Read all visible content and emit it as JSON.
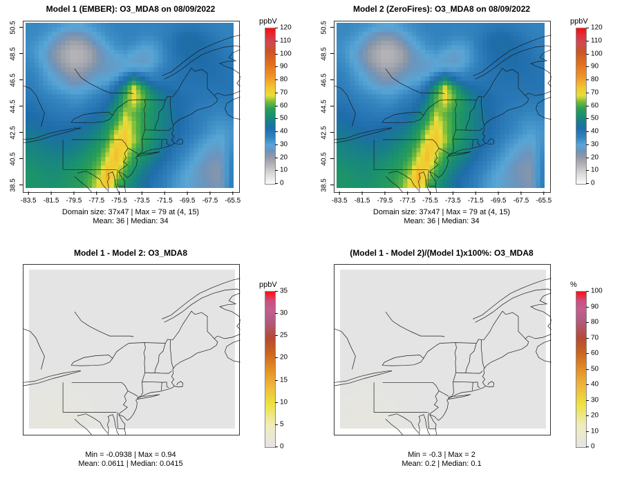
{
  "page": {
    "background": "#ffffff"
  },
  "panels": [
    {
      "title": "Model 1 (EMBER): O3_MDA8 on 08/09/2022",
      "stats_line1": "Domain size: 37x47 | Max = 79 at (4, 15)",
      "stats_line2": "Mean: 36 |  Median: 34",
      "colorbar": {
        "label": "ppbV",
        "min": 0,
        "max": 120,
        "ticks": [
          0,
          10,
          20,
          30,
          40,
          50,
          60,
          70,
          80,
          90,
          100,
          110,
          120
        ],
        "palette": "ozone"
      },
      "x_ticks": [
        -83.5,
        -81.5,
        -79.5,
        -77.5,
        -75.5,
        -73.5,
        -71.5,
        -69.5,
        -67.5,
        -65.5
      ],
      "y_ticks": [
        38.5,
        40.5,
        42.5,
        44.5,
        46.5,
        48.5,
        50.5
      ],
      "grid_ref": "ozone"
    },
    {
      "title": "Model 2 (ZeroFires): O3_MDA8 on 08/09/2022",
      "stats_line1": "Domain size: 37x47 | Max = 79 at (4, 15)",
      "stats_line2": "Mean: 36 |  Median: 34",
      "colorbar": {
        "label": "ppbV",
        "min": 0,
        "max": 120,
        "ticks": [
          0,
          10,
          20,
          30,
          40,
          50,
          60,
          70,
          80,
          90,
          100,
          110,
          120
        ],
        "palette": "ozone"
      },
      "x_ticks": [
        -83.5,
        -81.5,
        -79.5,
        -77.5,
        -75.5,
        -73.5,
        -71.5,
        -69.5,
        -67.5,
        -65.5
      ],
      "y_ticks": [
        38.5,
        40.5,
        42.5,
        44.5,
        46.5,
        48.5,
        50.5
      ],
      "grid_ref": "ozone"
    },
    {
      "title": "Model 1 - Model 2: O3_MDA8",
      "stats_line1": "Min = -0.0938 | Max = 0.94",
      "stats_line2": "Mean: 0.0611 |  Median: 0.0415",
      "colorbar": {
        "label": "ppbV",
        "min": 0,
        "max": 35,
        "ticks": [
          0,
          5,
          10,
          15,
          20,
          25,
          30,
          35
        ],
        "palette": "diff"
      },
      "x_ticks": [],
      "y_ticks": [],
      "grid_ref": "diff"
    },
    {
      "title": "(Model 1 - Model 2)/(Model 1)x100%: O3_MDA8",
      "stats_line1": "Min = -0.3 | Max = 2",
      "stats_line2": "Mean: 0.2 |  Median: 0.1",
      "colorbar": {
        "label": "%",
        "min": 0,
        "max": 100,
        "ticks": [
          0,
          10,
          20,
          30,
          40,
          50,
          60,
          70,
          80,
          90,
          100
        ],
        "palette": "diff"
      },
      "x_ticks": [],
      "y_ticks": [],
      "grid_ref": "pct"
    }
  ],
  "chart_data": {
    "type": "heatmap",
    "description": "2x2 panel ozone model comparison maps over the northeastern US / southeastern Canada",
    "lon_range": [
      -84,
      -65
    ],
    "lat_range": [
      38,
      51
    ],
    "domain_size": "37x47",
    "maps": [
      {
        "title": "Model 1 (EMBER): O3_MDA8 on 08/09/2022",
        "units": "ppbV",
        "zlim": [
          0,
          120
        ],
        "grid_ref": "ozone",
        "stats": {
          "max": 79,
          "max_at": "(4, 15)",
          "mean": 36,
          "median": 34
        }
      },
      {
        "title": "Model 2 (ZeroFires): O3_MDA8 on 08/09/2022",
        "units": "ppbV",
        "zlim": [
          0,
          120
        ],
        "grid_ref": "ozone",
        "stats": {
          "max": 79,
          "max_at": "(4, 15)",
          "mean": 36,
          "median": 34
        }
      },
      {
        "title": "Model 1 - Model 2: O3_MDA8",
        "units": "ppbV",
        "zlim": [
          0,
          35
        ],
        "grid_ref": "diff",
        "stats": {
          "min": -0.0938,
          "max": 0.94,
          "mean": 0.0611,
          "median": 0.0415
        }
      },
      {
        "title": "(Model 1 - Model 2)/(Model 1)x100%: O3_MDA8",
        "units": "%",
        "zlim": [
          0,
          100
        ],
        "grid_ref": "pct",
        "stats": {
          "min": -0.3,
          "max": 2,
          "mean": 0.2,
          "median": 0.1
        }
      }
    ],
    "grids": {
      "ozone": [
        [
          35,
          35,
          34,
          33,
          31,
          30,
          30,
          32,
          34,
          35,
          36,
          36,
          36,
          36,
          36,
          36,
          37,
          38,
          39,
          39,
          38,
          37,
          36,
          36
        ],
        [
          35,
          34,
          32,
          28,
          25,
          23,
          24,
          27,
          31,
          34,
          35,
          36,
          36,
          35,
          35,
          36,
          38,
          41,
          43,
          43,
          41,
          39,
          37,
          36
        ],
        [
          34,
          32,
          29,
          24,
          20,
          17,
          18,
          22,
          27,
          31,
          34,
          35,
          34,
          32,
          32,
          34,
          38,
          42,
          44,
          44,
          43,
          41,
          39,
          37
        ],
        [
          34,
          31,
          27,
          21,
          17,
          14,
          15,
          18,
          24,
          28,
          31,
          32,
          30,
          28,
          29,
          33,
          37,
          41,
          43,
          44,
          43,
          42,
          40,
          38
        ],
        [
          35,
          32,
          28,
          23,
          18,
          15,
          16,
          19,
          24,
          27,
          28,
          29,
          28,
          27,
          29,
          33,
          37,
          40,
          42,
          43,
          43,
          42,
          41,
          39
        ],
        [
          36,
          34,
          30,
          26,
          22,
          19,
          20,
          23,
          26,
          27,
          28,
          31,
          33,
          32,
          33,
          36,
          38,
          40,
          41,
          42,
          42,
          42,
          41,
          40
        ],
        [
          37,
          35,
          32,
          29,
          26,
          23,
          24,
          27,
          29,
          30,
          34,
          42,
          52,
          44,
          38,
          38,
          39,
          40,
          41,
          41,
          41,
          41,
          41,
          40
        ],
        [
          38,
          36,
          34,
          32,
          30,
          28,
          29,
          31,
          33,
          35,
          42,
          55,
          68,
          58,
          48,
          44,
          42,
          41,
          40,
          40,
          40,
          40,
          40,
          40
        ],
        [
          39,
          38,
          36,
          35,
          34,
          33,
          33,
          35,
          37,
          40,
          48,
          60,
          70,
          62,
          54,
          48,
          45,
          43,
          41,
          40,
          39,
          39,
          39,
          39
        ],
        [
          41,
          40,
          38,
          37,
          36,
          35,
          36,
          38,
          40,
          44,
          52,
          62,
          66,
          60,
          55,
          50,
          46,
          43,
          41,
          39,
          38,
          37,
          37,
          37
        ],
        [
          43,
          42,
          40,
          39,
          38,
          38,
          39,
          41,
          43,
          48,
          56,
          66,
          62,
          58,
          54,
          50,
          47,
          44,
          41,
          38,
          37,
          36,
          35,
          36
        ],
        [
          44,
          43,
          42,
          41,
          41,
          41,
          42,
          44,
          47,
          52,
          60,
          70,
          64,
          58,
          54,
          50,
          47,
          44,
          41,
          38,
          36,
          34,
          33,
          34
        ],
        [
          46,
          45,
          44,
          43,
          43,
          44,
          45,
          47,
          50,
          56,
          66,
          72,
          64,
          58,
          54,
          50,
          46,
          43,
          40,
          37,
          35,
          33,
          31,
          33
        ],
        [
          48,
          47,
          46,
          45,
          45,
          46,
          48,
          50,
          54,
          60,
          70,
          74,
          66,
          58,
          53,
          49,
          45,
          42,
          38,
          35,
          33,
          30,
          29,
          33
        ],
        [
          50,
          49,
          48,
          47,
          47,
          48,
          50,
          53,
          57,
          64,
          74,
          70,
          62,
          56,
          52,
          47,
          43,
          39,
          36,
          33,
          30,
          28,
          27,
          34
        ],
        [
          51,
          50,
          50,
          49,
          50,
          51,
          53,
          56,
          60,
          68,
          76,
          66,
          58,
          53,
          49,
          45,
          41,
          37,
          34,
          31,
          28,
          25,
          24,
          35
        ],
        [
          53,
          52,
          51,
          51,
          52,
          53,
          55,
          58,
          63,
          72,
          72,
          62,
          55,
          50,
          46,
          42,
          38,
          35,
          32,
          29,
          25,
          23,
          23,
          36
        ],
        [
          54,
          53,
          52,
          52,
          53,
          55,
          57,
          60,
          66,
          79,
          68,
          58,
          52,
          47,
          43,
          40,
          36,
          33,
          30,
          28,
          25,
          23,
          22,
          36
        ],
        [
          54,
          54,
          53,
          53,
          54,
          56,
          58,
          62,
          70,
          74,
          62,
          54,
          49,
          45,
          41,
          38,
          35,
          32,
          30,
          28,
          26,
          24,
          23,
          37
        ]
      ],
      "diff": [
        [
          0.02,
          0.02,
          0.02,
          0.02,
          0.02,
          0.02,
          0.02,
          0.02,
          0.02,
          0.02,
          0.02,
          0.02
        ],
        [
          0.02,
          0.02,
          0.02,
          0.02,
          0.02,
          0.02,
          0.02,
          0.02,
          0.02,
          0.02,
          0.02,
          0.02
        ],
        [
          0.02,
          0.03,
          0.02,
          0.02,
          0.02,
          0.02,
          0.02,
          0.02,
          0.02,
          0.02,
          0.02,
          0.02
        ],
        [
          0.03,
          0.03,
          0.03,
          0.02,
          0.02,
          0.02,
          0.02,
          0.02,
          0.02,
          0.02,
          0.02,
          0.02
        ],
        [
          0.03,
          0.04,
          0.03,
          0.02,
          0.02,
          0.02,
          0.02,
          0.02,
          0.02,
          0.02,
          0.02,
          0.02
        ],
        [
          0.04,
          0.05,
          0.04,
          0.03,
          0.02,
          0.02,
          0.02,
          0.02,
          0.02,
          0.02,
          0.02,
          0.02
        ],
        [
          0.05,
          0.08,
          0.06,
          0.03,
          0.02,
          0.02,
          0.02,
          0.02,
          0.02,
          0.02,
          0.02,
          0.02
        ],
        [
          0.25,
          0.4,
          0.3,
          0.12,
          0.05,
          0.02,
          0.02,
          0.02,
          0.02,
          0.02,
          0.02,
          0.02
        ],
        [
          0.55,
          0.85,
          0.6,
          0.3,
          0.1,
          0.03,
          0.02,
          0.02,
          0.02,
          0.02,
          0.02,
          0.02
        ],
        [
          0.7,
          0.94,
          0.75,
          0.4,
          0.15,
          0.05,
          0.02,
          0.02,
          0.02,
          0.02,
          0.02,
          0.02
        ]
      ],
      "pct": [
        [
          0.05,
          0.05,
          0.05,
          0.05,
          0.05,
          0.05,
          0.05,
          0.05,
          0.05,
          0.05,
          0.05,
          0.05
        ],
        [
          0.05,
          0.05,
          0.05,
          0.05,
          0.05,
          0.05,
          0.05,
          0.05,
          0.05,
          0.05,
          0.05,
          0.05
        ],
        [
          0.05,
          0.06,
          0.05,
          0.05,
          0.05,
          0.05,
          0.05,
          0.05,
          0.05,
          0.05,
          0.05,
          0.05
        ],
        [
          0.06,
          0.07,
          0.06,
          0.05,
          0.05,
          0.05,
          0.05,
          0.05,
          0.05,
          0.05,
          0.05,
          0.05
        ],
        [
          0.07,
          0.08,
          0.07,
          0.05,
          0.05,
          0.05,
          0.05,
          0.05,
          0.05,
          0.05,
          0.05,
          0.05
        ],
        [
          0.08,
          0.1,
          0.08,
          0.06,
          0.05,
          0.05,
          0.05,
          0.05,
          0.05,
          0.05,
          0.05,
          0.05
        ],
        [
          0.1,
          0.18,
          0.12,
          0.07,
          0.05,
          0.05,
          0.05,
          0.05,
          0.05,
          0.05,
          0.05,
          0.05
        ],
        [
          0.5,
          0.9,
          0.6,
          0.25,
          0.1,
          0.05,
          0.05,
          0.05,
          0.05,
          0.05,
          0.05,
          0.05
        ],
        [
          1.2,
          1.8,
          1.3,
          0.6,
          0.2,
          0.07,
          0.05,
          0.05,
          0.05,
          0.05,
          0.05,
          0.05
        ],
        [
          1.5,
          2.0,
          1.6,
          0.8,
          0.3,
          0.1,
          0.05,
          0.05,
          0.05,
          0.05,
          0.05,
          0.05
        ]
      ]
    },
    "palettes": {
      "ozone": [
        [
          0.0,
          "#fcfcfc"
        ],
        [
          0.067,
          "#d8d8d8"
        ],
        [
          0.125,
          "#b2b2b6"
        ],
        [
          0.175,
          "#8f98a6"
        ],
        [
          0.208,
          "#6e93ba"
        ],
        [
          0.25,
          "#58a6d6"
        ],
        [
          0.3,
          "#3282be"
        ],
        [
          0.358,
          "#1e6caa"
        ],
        [
          0.4,
          "#187e8a"
        ],
        [
          0.442,
          "#1b916e"
        ],
        [
          0.483,
          "#2a9e55"
        ],
        [
          0.525,
          "#6eb93c"
        ],
        [
          0.567,
          "#e6de3a"
        ],
        [
          0.617,
          "#f3c62f"
        ],
        [
          0.683,
          "#f09828"
        ],
        [
          0.767,
          "#e2711e"
        ],
        [
          0.85,
          "#ca5424"
        ],
        [
          0.908,
          "#ce4954"
        ],
        [
          0.958,
          "#e02d37"
        ],
        [
          1.0,
          "#ff0a0a"
        ]
      ],
      "diff": [
        [
          0.0,
          "#e4e4e4"
        ],
        [
          0.06,
          "#eae8d4"
        ],
        [
          0.14,
          "#f0ecbe"
        ],
        [
          0.28,
          "#ece23e"
        ],
        [
          0.4,
          "#eeb43a"
        ],
        [
          0.5,
          "#e48f26"
        ],
        [
          0.6,
          "#cc661e"
        ],
        [
          0.7,
          "#b44a32"
        ],
        [
          0.8,
          "#b05a78"
        ],
        [
          0.88,
          "#c25f90"
        ],
        [
          0.94,
          "#ce4f82"
        ],
        [
          1.0,
          "#ff0f0f"
        ]
      ]
    }
  }
}
